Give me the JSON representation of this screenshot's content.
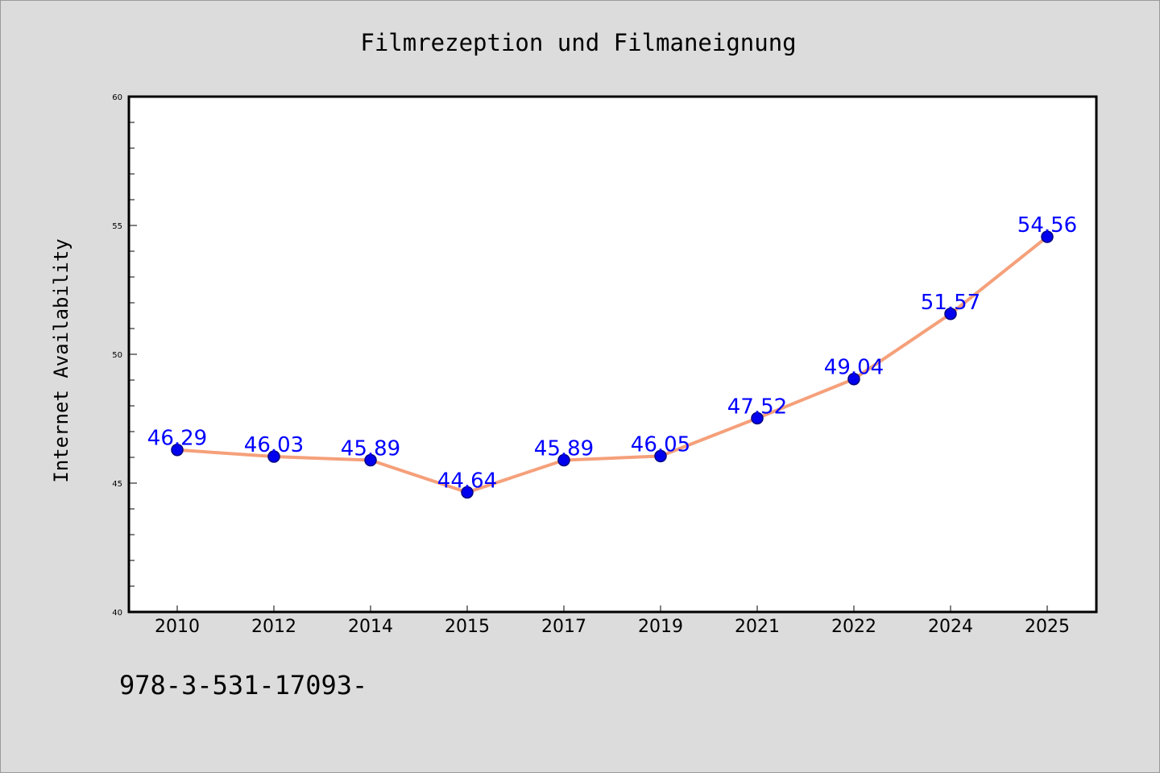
{
  "chart_data": {
    "type": "line",
    "title": "Filmrezeption und Filmaneignung",
    "xlabel": "",
    "ylabel": "Internet Availability",
    "categories": [
      "2010",
      "2012",
      "2014",
      "2015",
      "2017",
      "2019",
      "2021",
      "2022",
      "2024",
      "2025"
    ],
    "series": [
      {
        "values": [
          46.29,
          46.03,
          45.89,
          44.64,
          45.89,
          46.05,
          47.52,
          49.04,
          51.57,
          54.56
        ],
        "labels": [
          "46.29",
          "46.03",
          "45.89",
          "44.64",
          "45.89",
          "46.05",
          "47.52",
          "49.04",
          "51.57",
          "54.56"
        ]
      }
    ],
    "ylim": [
      40,
      60
    ],
    "y_ticks": [
      "40",
      "45",
      "50",
      "55",
      "60"
    ],
    "grid": false,
    "colors": {
      "line": "#f5a07a",
      "marker": "#0000ee",
      "marker_edge": "#000080",
      "data_label": "#0000ff",
      "plot_bg": "#ffffff",
      "page_bg": "#dcdcdc"
    }
  },
  "footer": {
    "code": "978-3-531-17093-"
  }
}
